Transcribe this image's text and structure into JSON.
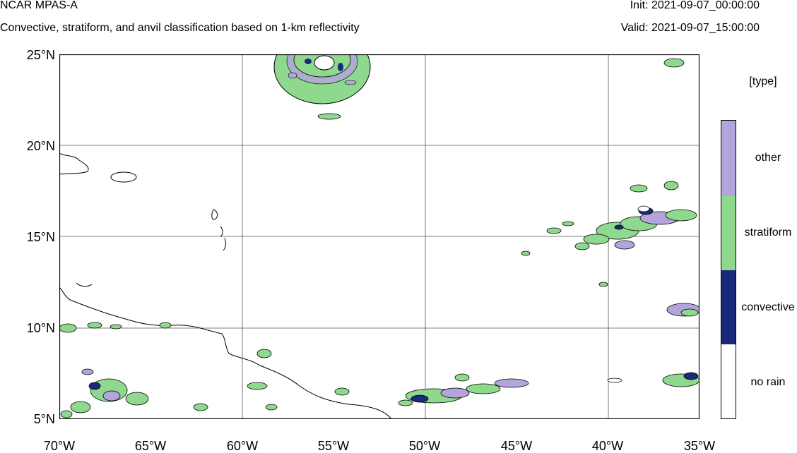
{
  "header": {
    "title": "NCAR MPAS-A",
    "subtitle": "Convective, stratiform, and anvil classification based on 1-km reflectivity",
    "init": "Init: 2021-09-07_00:00:00",
    "valid": "Valid: 2021-09-07_15:00:00"
  },
  "axes": {
    "lat_labels": [
      "25°N",
      "20°N",
      "15°N",
      "10°N",
      "5°N"
    ],
    "lon_labels": [
      "70°W",
      "65°W",
      "60°W",
      "55°W",
      "50°W",
      "45°W",
      "40°W",
      "35°W"
    ]
  },
  "legend": {
    "title": "[type]",
    "categories": [
      {
        "label": "other",
        "color": "#b3a4dc"
      },
      {
        "label": "stratiform",
        "color": "#8fd98f"
      },
      {
        "label": "convective",
        "color": "#1a2a7a"
      },
      {
        "label": "no rain",
        "color": "#ffffff"
      }
    ]
  },
  "colors": {
    "stratiform": "#8fd98f",
    "convective": "#1a2a7a",
    "other": "#b3a4dc",
    "coast": "#000000",
    "grid": "#555555"
  }
}
